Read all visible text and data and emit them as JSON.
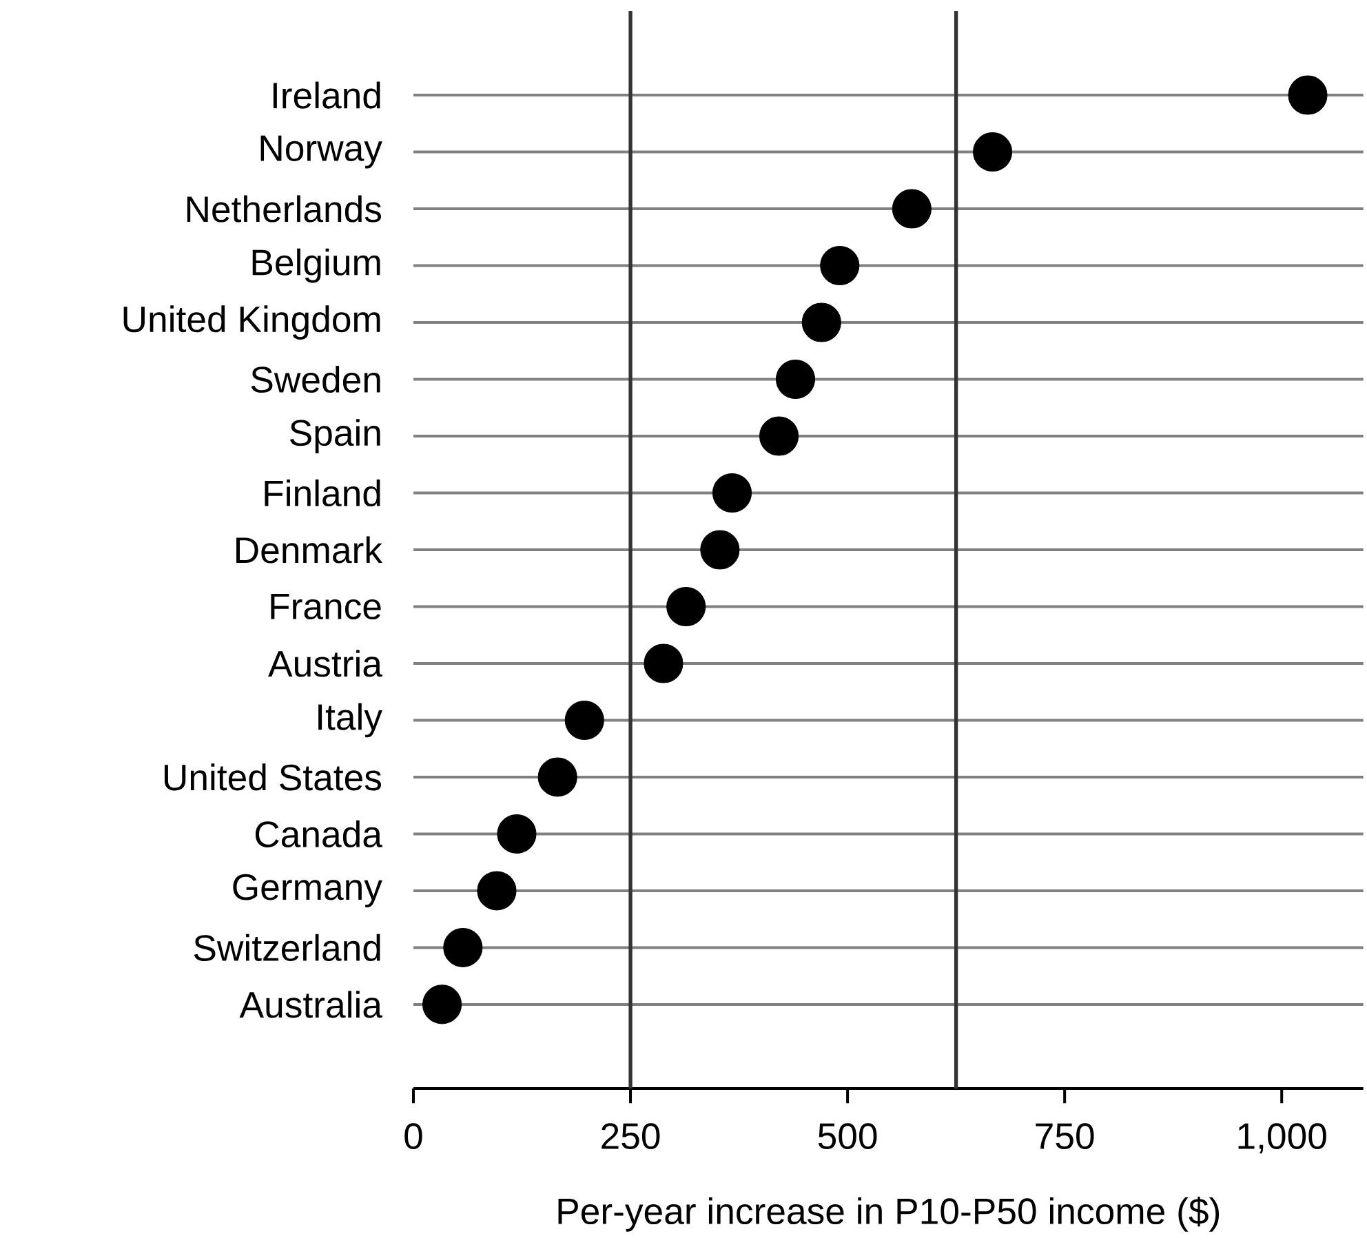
{
  "chart_data": {
    "type": "scatter",
    "orientation": "horizontal",
    "xlabel": "Per-year increase in P10-P50 income ($)",
    "categories": [
      "Ireland",
      "Norway",
      "Netherlands",
      "Belgium",
      "United Kingdom",
      "Sweden",
      "Spain",
      "Finland",
      "Denmark",
      "France",
      "Austria",
      "Italy",
      "United States",
      "Canada",
      "Germany",
      "Switzerland",
      "Australia"
    ],
    "values": [
      1030,
      667,
      574,
      491,
      470,
      440,
      421,
      367,
      353,
      314,
      288,
      197,
      166,
      119,
      96,
      57,
      33
    ],
    "color": "#000000",
    "grid": "y",
    "xlim": [
      0,
      1094
    ],
    "xticks": [
      0,
      250,
      500,
      750,
      {
        "value": 1000,
        "label": "1,000"
      }
    ],
    "ref_lines": [
      {
        "axis": "x",
        "value": 250,
        "color": "#333333"
      },
      {
        "axis": "x",
        "value": 625,
        "color": "#333333"
      }
    ]
  }
}
